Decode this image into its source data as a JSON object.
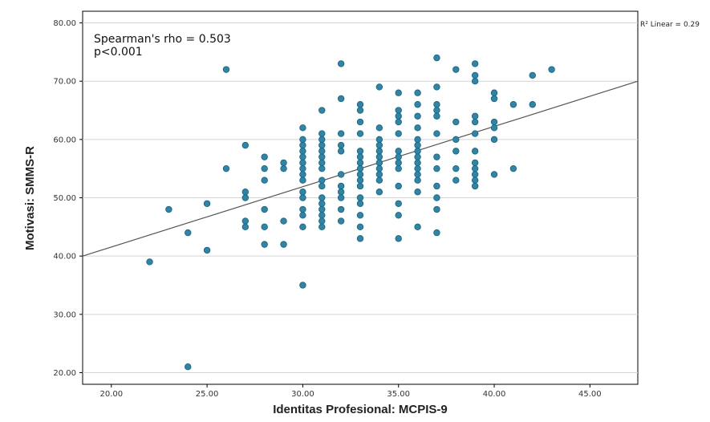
{
  "chart_data": {
    "type": "scatter",
    "xlabel": "Identitas Profesional: MCPIS-9",
    "ylabel": "Motivasi: SMMS-R",
    "xlim": [
      18.5,
      47.5
    ],
    "ylim": [
      18,
      82
    ],
    "x_ticks": [
      "20.00",
      "25.00",
      "30.00",
      "35.00",
      "40.00",
      "45.00"
    ],
    "y_ticks": [
      "20.00",
      "30.00",
      "40.00",
      "50.00",
      "60.00",
      "70.00",
      "80.00"
    ],
    "grid": "horizontal",
    "annotations": [
      "Spearman's rho = 0.503",
      "p<0.001"
    ],
    "r2_label": "R² Linear = 0.29",
    "fit_line": {
      "x": [
        18.5,
        47.5
      ],
      "y": [
        40,
        70
      ]
    },
    "marker_color": "#2a87aa",
    "line_color": "#555555",
    "points": [
      [
        22,
        39
      ],
      [
        23,
        48
      ],
      [
        24,
        44
      ],
      [
        24,
        21
      ],
      [
        25,
        49
      ],
      [
        25,
        41
      ],
      [
        26,
        72
      ],
      [
        26,
        55
      ],
      [
        27,
        59
      ],
      [
        27,
        51
      ],
      [
        27,
        50
      ],
      [
        27,
        46
      ],
      [
        27,
        45
      ],
      [
        28,
        57
      ],
      [
        28,
        55
      ],
      [
        28,
        53
      ],
      [
        28,
        48
      ],
      [
        28,
        45
      ],
      [
        28,
        42
      ],
      [
        29,
        56
      ],
      [
        29,
        55
      ],
      [
        29,
        46
      ],
      [
        29,
        42
      ],
      [
        30,
        62
      ],
      [
        30,
        60
      ],
      [
        30,
        59
      ],
      [
        30,
        58
      ],
      [
        30,
        57
      ],
      [
        30,
        56
      ],
      [
        30,
        55
      ],
      [
        30,
        54
      ],
      [
        30,
        53
      ],
      [
        30,
        51
      ],
      [
        30,
        50
      ],
      [
        30,
        48
      ],
      [
        30,
        47
      ],
      [
        30,
        45
      ],
      [
        30,
        35
      ],
      [
        31,
        65
      ],
      [
        31,
        61
      ],
      [
        31,
        60
      ],
      [
        31,
        59
      ],
      [
        31,
        58
      ],
      [
        31,
        57
      ],
      [
        31,
        56
      ],
      [
        31,
        55
      ],
      [
        31,
        53
      ],
      [
        31,
        52
      ],
      [
        31,
        50
      ],
      [
        31,
        49
      ],
      [
        31,
        48
      ],
      [
        31,
        47
      ],
      [
        31,
        46
      ],
      [
        31,
        45
      ],
      [
        32,
        73
      ],
      [
        32,
        67
      ],
      [
        32,
        61
      ],
      [
        32,
        59
      ],
      [
        32,
        58
      ],
      [
        32,
        54
      ],
      [
        32,
        52
      ],
      [
        32,
        51
      ],
      [
        32,
        50
      ],
      [
        32,
        48
      ],
      [
        32,
        46
      ],
      [
        33,
        66
      ],
      [
        33,
        65
      ],
      [
        33,
        63
      ],
      [
        33,
        61
      ],
      [
        33,
        58
      ],
      [
        33,
        57
      ],
      [
        33,
        56
      ],
      [
        33,
        55
      ],
      [
        33,
        54
      ],
      [
        33,
        53
      ],
      [
        33,
        52
      ],
      [
        33,
        50
      ],
      [
        33,
        49
      ],
      [
        33,
        47
      ],
      [
        33,
        45
      ],
      [
        33,
        43
      ],
      [
        34,
        69
      ],
      [
        34,
        62
      ],
      [
        34,
        60
      ],
      [
        34,
        59
      ],
      [
        34,
        58
      ],
      [
        34,
        57
      ],
      [
        34,
        56
      ],
      [
        34,
        55
      ],
      [
        34,
        54
      ],
      [
        34,
        53
      ],
      [
        34,
        51
      ],
      [
        35,
        68
      ],
      [
        35,
        65
      ],
      [
        35,
        64
      ],
      [
        35,
        63
      ],
      [
        35,
        61
      ],
      [
        35,
        58
      ],
      [
        35,
        57
      ],
      [
        35,
        56
      ],
      [
        35,
        55
      ],
      [
        35,
        52
      ],
      [
        35,
        49
      ],
      [
        35,
        47
      ],
      [
        35,
        43
      ],
      [
        36,
        68
      ],
      [
        36,
        66
      ],
      [
        36,
        64
      ],
      [
        36,
        62
      ],
      [
        36,
        60
      ],
      [
        36,
        59
      ],
      [
        36,
        58
      ],
      [
        36,
        57
      ],
      [
        36,
        56
      ],
      [
        36,
        55
      ],
      [
        36,
        54
      ],
      [
        36,
        53
      ],
      [
        36,
        51
      ],
      [
        36,
        45
      ],
      [
        37,
        74
      ],
      [
        37,
        69
      ],
      [
        37,
        66
      ],
      [
        37,
        65
      ],
      [
        37,
        64
      ],
      [
        37,
        61
      ],
      [
        37,
        57
      ],
      [
        37,
        55
      ],
      [
        37,
        52
      ],
      [
        37,
        50
      ],
      [
        37,
        48
      ],
      [
        37,
        44
      ],
      [
        38,
        72
      ],
      [
        38,
        63
      ],
      [
        38,
        60
      ],
      [
        38,
        58
      ],
      [
        38,
        55
      ],
      [
        38,
        53
      ],
      [
        39,
        73
      ],
      [
        39,
        71
      ],
      [
        39,
        70
      ],
      [
        39,
        64
      ],
      [
        39,
        63
      ],
      [
        39,
        61
      ],
      [
        39,
        58
      ],
      [
        39,
        56
      ],
      [
        39,
        55
      ],
      [
        39,
        54
      ],
      [
        39,
        53
      ],
      [
        39,
        52
      ],
      [
        40,
        68
      ],
      [
        40,
        67
      ],
      [
        40,
        63
      ],
      [
        40,
        62
      ],
      [
        40,
        60
      ],
      [
        40,
        54
      ],
      [
        41,
        66
      ],
      [
        41,
        55
      ],
      [
        42,
        71
      ],
      [
        42,
        66
      ],
      [
        43,
        72
      ]
    ]
  }
}
